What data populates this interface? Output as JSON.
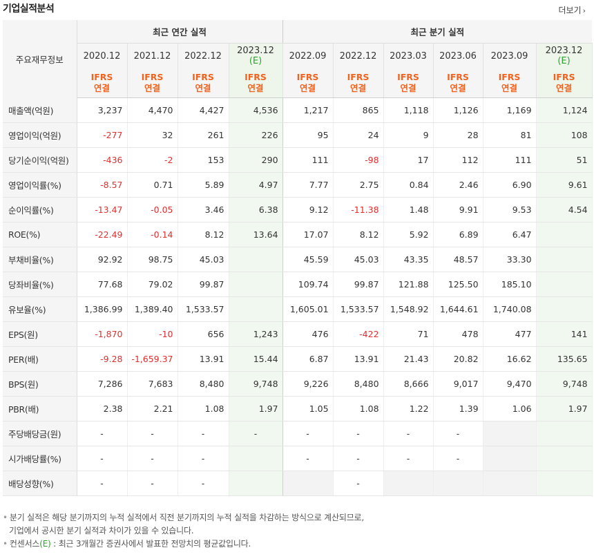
{
  "title": "기업실적분석",
  "more_label": "더보기",
  "header": {
    "corner_label": "주요재무정보",
    "annual_label": "최근 연간 실적",
    "quarter_label": "최근 분기 실적",
    "ifrs_line1": "IFRS",
    "ifrs_line2": "연결",
    "est_mark": "(E)"
  },
  "periods": [
    {
      "date": "2020.12",
      "est": false
    },
    {
      "date": "2021.12",
      "est": false
    },
    {
      "date": "2022.12",
      "est": false
    },
    {
      "date": "2023.12",
      "est": true
    },
    {
      "date": "2022.09",
      "est": false
    },
    {
      "date": "2022.12",
      "est": false
    },
    {
      "date": "2023.03",
      "est": false
    },
    {
      "date": "2023.06",
      "est": false
    },
    {
      "date": "2023.09",
      "est": false
    },
    {
      "date": "2023.12",
      "est": true
    }
  ],
  "rows": [
    {
      "label": "매출액(억원)",
      "values": [
        "3,237",
        "4,470",
        "4,427",
        "4,536",
        "1,217",
        "865",
        "1,118",
        "1,126",
        "1,169",
        "1,124"
      ]
    },
    {
      "label": "영업이익(억원)",
      "values": [
        "-277",
        "32",
        "261",
        "226",
        "95",
        "24",
        "9",
        "28",
        "81",
        "108"
      ]
    },
    {
      "label": "당기순이익(억원)",
      "values": [
        "-436",
        "-2",
        "153",
        "290",
        "111",
        "-98",
        "17",
        "112",
        "111",
        "51"
      ]
    },
    {
      "label": "영업이익률(%)",
      "values": [
        "-8.57",
        "0.71",
        "5.89",
        "4.97",
        "7.77",
        "2.75",
        "0.84",
        "2.46",
        "6.90",
        "9.61"
      ]
    },
    {
      "label": "순이익률(%)",
      "values": [
        "-13.47",
        "-0.05",
        "3.46",
        "6.38",
        "9.12",
        "-11.38",
        "1.48",
        "9.91",
        "9.53",
        "4.54"
      ]
    },
    {
      "label": "ROE(%)",
      "values": [
        "-22.49",
        "-0.14",
        "8.12",
        "13.64",
        "17.07",
        "8.12",
        "5.92",
        "6.89",
        "6.47",
        ""
      ]
    },
    {
      "label": "부채비율(%)",
      "values": [
        "92.92",
        "98.75",
        "45.03",
        "",
        "45.59",
        "45.03",
        "43.35",
        "48.57",
        "33.30",
        ""
      ]
    },
    {
      "label": "당좌비율(%)",
      "values": [
        "77.68",
        "79.02",
        "99.87",
        "",
        "109.74",
        "99.87",
        "121.88",
        "125.50",
        "185.10",
        ""
      ]
    },
    {
      "label": "유보율(%)",
      "values": [
        "1,386.99",
        "1,389.40",
        "1,533.57",
        "",
        "1,605.01",
        "1,533.57",
        "1,548.92",
        "1,644.61",
        "1,740.08",
        ""
      ]
    },
    {
      "label": "EPS(원)",
      "values": [
        "-1,870",
        "-10",
        "656",
        "1,243",
        "476",
        "-422",
        "71",
        "478",
        "477",
        "141"
      ]
    },
    {
      "label": "PER(배)",
      "values": [
        "-9.28",
        "-1,659.37",
        "13.91",
        "15.44",
        "6.87",
        "13.91",
        "21.43",
        "20.82",
        "16.62",
        "135.65"
      ]
    },
    {
      "label": "BPS(원)",
      "values": [
        "7,286",
        "7,683",
        "8,480",
        "9,748",
        "9,226",
        "8,480",
        "8,666",
        "9,017",
        "9,470",
        "9,748"
      ]
    },
    {
      "label": "PBR(배)",
      "values": [
        "2.38",
        "2.21",
        "1.08",
        "1.97",
        "1.05",
        "1.08",
        "1.22",
        "1.39",
        "1.06",
        "1.97"
      ]
    },
    {
      "label": "주당배당금(원)",
      "values": [
        "-",
        "-",
        "-",
        "-",
        "-",
        "-",
        "-",
        "-",
        "",
        ""
      ]
    },
    {
      "label": "시가배당률(%)",
      "values": [
        "-",
        "-",
        "-",
        "",
        "-",
        "-",
        "-",
        "-",
        "",
        ""
      ]
    },
    {
      "label": "배당성향(%)",
      "values": [
        "-",
        "-",
        "-",
        "",
        "",
        "-",
        "",
        "",
        "",
        ""
      ]
    }
  ],
  "grey_cells": {
    "13": [
      8
    ],
    "14": [
      8
    ],
    "15": [
      4,
      6,
      7,
      8
    ]
  },
  "notes": {
    "line1": "분기 실적은 해당 분기까지의 누적 실적에서 직전 분기까지의 누적 실적을 차감하는 방식으로 계산되므로,",
    "line2": "기업에서 공시한 분기 실적과 차이가 있을 수 있습니다.",
    "line3_prefix": "컨센서스",
    "line3_mark": "(E)",
    "line3_suffix": " : 최근 3개월간 증권사에서 발표한 전망치의 평균값입니다."
  },
  "colors": {
    "negative": "#e12d2d",
    "ifrs": "#f0631e",
    "estimate": "#2aa52a",
    "estimate_bg": "#f1f8ef"
  }
}
